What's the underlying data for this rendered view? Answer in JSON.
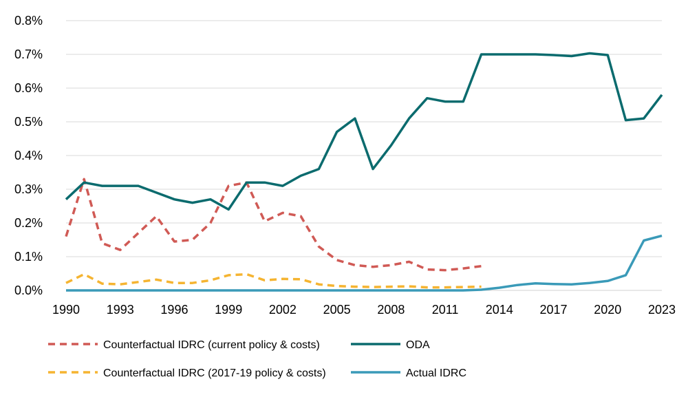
{
  "chart_data": {
    "type": "line",
    "title": "",
    "xlabel": "",
    "ylabel": "",
    "x_tick_labels": [
      "1990",
      "1993",
      "1996",
      "1999",
      "2002",
      "2005",
      "2008",
      "2011",
      "2014",
      "2017",
      "2020",
      "2023"
    ],
    "y_tick_labels": [
      "0.0%",
      "0.1%",
      "0.2%",
      "0.3%",
      "0.4%",
      "0.5%",
      "0.6%",
      "0.7%",
      "0.8%"
    ],
    "ylim": [
      0,
      0.8
    ],
    "xlim": [
      1990,
      2023
    ],
    "grid": "horizontal",
    "legend_position": "bottom",
    "series": [
      {
        "name": "Counterfactual IDRC (current policy & costs)",
        "color": "#D05A55",
        "dash": "dashed",
        "x": [
          1990,
          1991,
          1992,
          1993,
          1994,
          1995,
          1996,
          1997,
          1998,
          1999,
          2000,
          2001,
          2002,
          2003,
          2004,
          2005,
          2006,
          2007,
          2008,
          2009,
          2010,
          2011,
          2012,
          2013
        ],
        "values": [
          0.16,
          0.33,
          0.14,
          0.12,
          0.17,
          0.22,
          0.145,
          0.15,
          0.2,
          0.31,
          0.32,
          0.205,
          0.23,
          0.22,
          0.13,
          0.09,
          0.075,
          0.07,
          0.075,
          0.085,
          0.062,
          0.06,
          0.065,
          0.072
        ]
      },
      {
        "name": "ODA",
        "color": "#0B6B6E",
        "dash": "solid",
        "x": [
          1990,
          1991,
          1992,
          1993,
          1994,
          1995,
          1996,
          1997,
          1998,
          1999,
          2000,
          2001,
          2002,
          2003,
          2004,
          2005,
          2006,
          2007,
          2008,
          2009,
          2010,
          2011,
          2012,
          2013,
          2014,
          2015,
          2016,
          2017,
          2018,
          2019,
          2020,
          2021,
          2022,
          2023
        ],
        "values": [
          0.27,
          0.32,
          0.31,
          0.31,
          0.31,
          0.29,
          0.27,
          0.26,
          0.27,
          0.24,
          0.32,
          0.32,
          0.31,
          0.34,
          0.36,
          0.47,
          0.51,
          0.36,
          0.43,
          0.51,
          0.57,
          0.56,
          0.56,
          0.7,
          0.7,
          0.7,
          0.7,
          0.698,
          0.695,
          0.703,
          0.698,
          0.505,
          0.51,
          0.58
        ]
      },
      {
        "name": "Counterfactual IDRC (2017-19 policy & costs)",
        "color": "#F5B431",
        "dash": "dashed",
        "x": [
          1990,
          1991,
          1992,
          1993,
          1994,
          1995,
          1996,
          1997,
          1998,
          1999,
          2000,
          2001,
          2002,
          2003,
          2004,
          2005,
          2006,
          2007,
          2008,
          2009,
          2010,
          2011,
          2012,
          2013
        ],
        "values": [
          0.022,
          0.048,
          0.02,
          0.018,
          0.025,
          0.032,
          0.022,
          0.022,
          0.03,
          0.045,
          0.048,
          0.03,
          0.034,
          0.033,
          0.018,
          0.013,
          0.011,
          0.01,
          0.011,
          0.012,
          0.009,
          0.009,
          0.01,
          0.011
        ]
      },
      {
        "name": "Actual IDRC",
        "color": "#3A9AB8",
        "dash": "solid",
        "x": [
          1990,
          1991,
          1992,
          1993,
          1994,
          1995,
          1996,
          1997,
          1998,
          1999,
          2000,
          2001,
          2002,
          2003,
          2004,
          2005,
          2006,
          2007,
          2008,
          2009,
          2010,
          2011,
          2012,
          2013,
          2014,
          2015,
          2016,
          2017,
          2018,
          2019,
          2020,
          2021,
          2022,
          2023
        ],
        "values": [
          0,
          0,
          0,
          0,
          0,
          0,
          0,
          0,
          0,
          0,
          0,
          0,
          0,
          0,
          0,
          0,
          0,
          0,
          0,
          0,
          0,
          0,
          0,
          0.002,
          0.008,
          0.016,
          0.021,
          0.019,
          0.018,
          0.022,
          0.028,
          0.045,
          0.148,
          0.162
        ]
      }
    ]
  }
}
